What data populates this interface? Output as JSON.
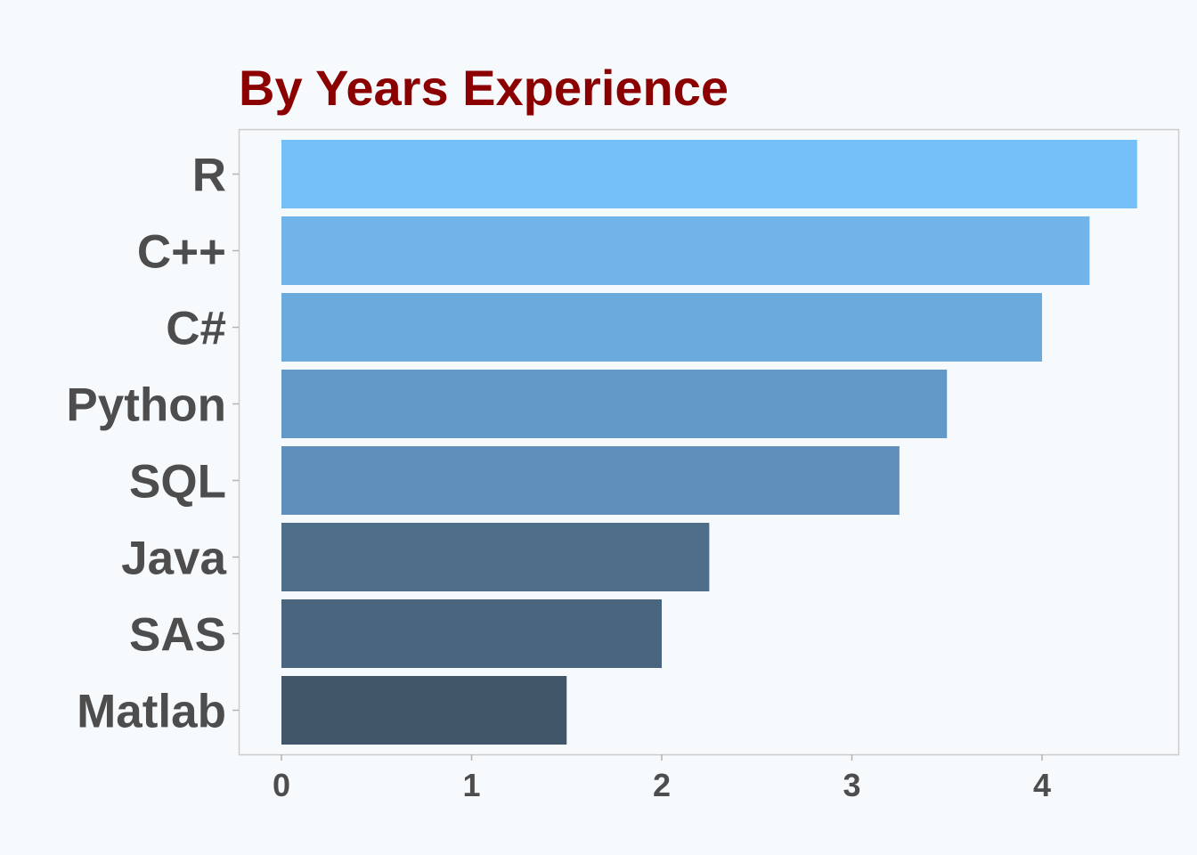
{
  "chart_data": {
    "type": "bar",
    "orientation": "horizontal",
    "title": "By Years Experience",
    "xlabel": "",
    "ylabel": "",
    "categories": [
      "R",
      "C++",
      "C#",
      "Python",
      "SQL",
      "Java",
      "SAS",
      "Matlab"
    ],
    "values": [
      4.5,
      4.25,
      4.0,
      3.5,
      3.25,
      2.25,
      2.0,
      1.5
    ],
    "xlim": [
      0,
      4.5
    ],
    "xticks": [
      "0",
      "1",
      "2",
      "3",
      "4"
    ],
    "grid": false,
    "legend": "none",
    "bar_colors": [
      "#74BFF7",
      "#70B4EA",
      "#6BAADC",
      "#6399C6",
      "#5F8FBA",
      "#4E6E8A",
      "#4A657E",
      "#425669"
    ],
    "colors": {
      "title": "#8B0000",
      "labels": "#4D4D4D",
      "background": "#F7FAFD",
      "panel_border": "#CCCCCC",
      "tick_mark": "#B3B3B3"
    }
  }
}
